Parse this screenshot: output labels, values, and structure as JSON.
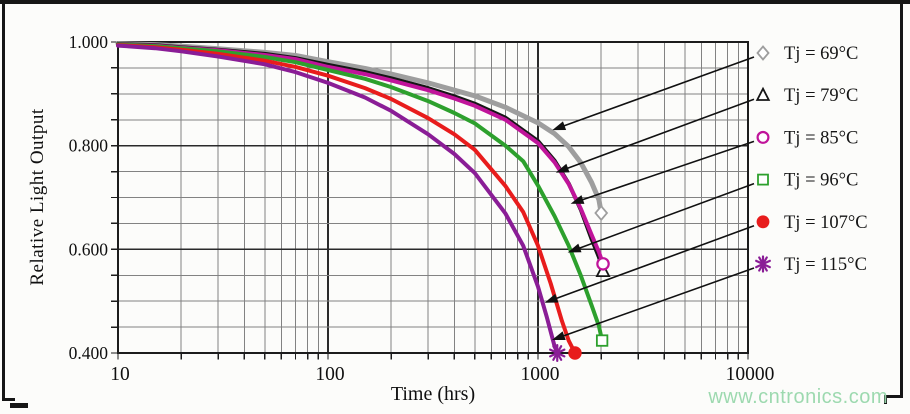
{
  "figure": {
    "xlabel": "Time (hrs)",
    "ylabel": "Relative Light Output",
    "watermark": "www.cntronics.com",
    "watermark_color": "#98d8ac",
    "background": "#fcfcfa",
    "frame_color": "#161616"
  },
  "chart_data": {
    "type": "line",
    "title": "",
    "xlabel": "Time (hrs)",
    "ylabel": "Relative Light Output",
    "x_scale": "log",
    "y_scale": "linear",
    "xlim": [
      10,
      10000
    ],
    "ylim": [
      0.4,
      1.0
    ],
    "x_ticks": {
      "values": [
        10,
        100,
        1000,
        10000
      ],
      "labels": [
        "10",
        "100",
        "1000",
        "10000"
      ]
    },
    "y_ticks": {
      "values": [
        1.0,
        0.8,
        0.6,
        0.4
      ],
      "labels": [
        "1.000",
        "0.800",
        "0.600",
        "0.400"
      ]
    },
    "y_minor_step": 0.05,
    "grid": "on",
    "grid_minor_color": "#828282",
    "grid_major_color": "#2a2a2a",
    "legend_position": "outside-right",
    "legend_leader_color": "#111111",
    "series": [
      {
        "label": "Tj = 69°C",
        "color": "#9e9e9e",
        "marker": "open-diamond",
        "line_width": 5,
        "leader_target": [
          1170,
          0.83
        ],
        "points": [
          [
            10,
            0.997
          ],
          [
            15,
            0.995
          ],
          [
            20,
            0.992
          ],
          [
            30,
            0.987
          ],
          [
            50,
            0.98
          ],
          [
            70,
            0.974
          ],
          [
            100,
            0.962
          ],
          [
            150,
            0.949
          ],
          [
            200,
            0.938
          ],
          [
            300,
            0.921
          ],
          [
            400,
            0.907
          ],
          [
            500,
            0.896
          ],
          [
            700,
            0.874
          ],
          [
            1000,
            0.844
          ],
          [
            1200,
            0.823
          ],
          [
            1400,
            0.798
          ],
          [
            1600,
            0.767
          ],
          [
            1800,
            0.729
          ],
          [
            1950,
            0.696
          ],
          [
            2000,
            0.67
          ]
        ]
      },
      {
        "label": "Tj = 79°C",
        "color": "#161616",
        "marker": "open-triangle",
        "line_width": 4,
        "leader_target": [
          1215,
          0.748
        ],
        "points": [
          [
            10,
            0.996
          ],
          [
            15,
            0.994
          ],
          [
            20,
            0.99
          ],
          [
            30,
            0.985
          ],
          [
            50,
            0.977
          ],
          [
            70,
            0.969
          ],
          [
            100,
            0.956
          ],
          [
            150,
            0.942
          ],
          [
            200,
            0.93
          ],
          [
            300,
            0.911
          ],
          [
            400,
            0.895
          ],
          [
            500,
            0.881
          ],
          [
            700,
            0.854
          ],
          [
            1000,
            0.809
          ],
          [
            1200,
            0.771
          ],
          [
            1400,
            0.727
          ],
          [
            1600,
            0.676
          ],
          [
            1800,
            0.62
          ],
          [
            1950,
            0.585
          ],
          [
            2040,
            0.558
          ]
        ]
      },
      {
        "label": "Tj = 85°C",
        "color": "#c0149a",
        "marker": "open-circle",
        "line_width": 4,
        "leader_target": [
          1430,
          0.688
        ],
        "points": [
          [
            10,
            0.995
          ],
          [
            15,
            0.993
          ],
          [
            20,
            0.989
          ],
          [
            30,
            0.984
          ],
          [
            50,
            0.975
          ],
          [
            70,
            0.967
          ],
          [
            100,
            0.952
          ],
          [
            150,
            0.938
          ],
          [
            200,
            0.926
          ],
          [
            300,
            0.907
          ],
          [
            400,
            0.891
          ],
          [
            500,
            0.877
          ],
          [
            700,
            0.85
          ],
          [
            1000,
            0.805
          ],
          [
            1200,
            0.768
          ],
          [
            1400,
            0.726
          ],
          [
            1600,
            0.678
          ],
          [
            1800,
            0.628
          ],
          [
            1950,
            0.595
          ],
          [
            2040,
            0.572
          ]
        ]
      },
      {
        "label": "Tj = 96°C",
        "color": "#2da02d",
        "marker": "open-square",
        "line_width": 4,
        "leader_target": [
          1385,
          0.594
        ],
        "points": [
          [
            10,
            0.995
          ],
          [
            15,
            0.992
          ],
          [
            20,
            0.988
          ],
          [
            30,
            0.982
          ],
          [
            50,
            0.971
          ],
          [
            70,
            0.961
          ],
          [
            100,
            0.946
          ],
          [
            150,
            0.929
          ],
          [
            200,
            0.913
          ],
          [
            300,
            0.886
          ],
          [
            400,
            0.863
          ],
          [
            500,
            0.843
          ],
          [
            700,
            0.8
          ],
          [
            850,
            0.77
          ],
          [
            1000,
            0.723
          ],
          [
            1200,
            0.664
          ],
          [
            1400,
            0.607
          ],
          [
            1600,
            0.549
          ],
          [
            1800,
            0.492
          ],
          [
            1950,
            0.452
          ],
          [
            2020,
            0.424
          ]
        ]
      },
      {
        "label": "Tj = 107°C",
        "color": "#e81c1c",
        "marker": "filled-circle",
        "line_width": 4,
        "leader_target": [
          1075,
          0.497
        ],
        "points": [
          [
            10,
            0.994
          ],
          [
            15,
            0.99
          ],
          [
            20,
            0.985
          ],
          [
            30,
            0.977
          ],
          [
            50,
            0.964
          ],
          [
            70,
            0.952
          ],
          [
            100,
            0.935
          ],
          [
            150,
            0.911
          ],
          [
            200,
            0.89
          ],
          [
            300,
            0.853
          ],
          [
            400,
            0.822
          ],
          [
            500,
            0.792
          ],
          [
            700,
            0.722
          ],
          [
            850,
            0.672
          ],
          [
            1000,
            0.607
          ],
          [
            1150,
            0.534
          ],
          [
            1300,
            0.462
          ],
          [
            1400,
            0.424
          ],
          [
            1500,
            0.4
          ]
        ]
      },
      {
        "label": "Tj = 115°C",
        "color": "#8a1d96",
        "marker": "asterisk",
        "line_width": 4,
        "leader_target": [
          1165,
          0.425
        ],
        "points": [
          [
            10,
            0.993
          ],
          [
            15,
            0.988
          ],
          [
            20,
            0.982
          ],
          [
            30,
            0.972
          ],
          [
            50,
            0.957
          ],
          [
            70,
            0.942
          ],
          [
            100,
            0.921
          ],
          [
            150,
            0.893
          ],
          [
            200,
            0.867
          ],
          [
            300,
            0.822
          ],
          [
            400,
            0.784
          ],
          [
            500,
            0.747
          ],
          [
            700,
            0.669
          ],
          [
            850,
            0.607
          ],
          [
            1000,
            0.528
          ],
          [
            1100,
            0.47
          ],
          [
            1200,
            0.413
          ],
          [
            1235,
            0.4
          ]
        ]
      }
    ]
  }
}
